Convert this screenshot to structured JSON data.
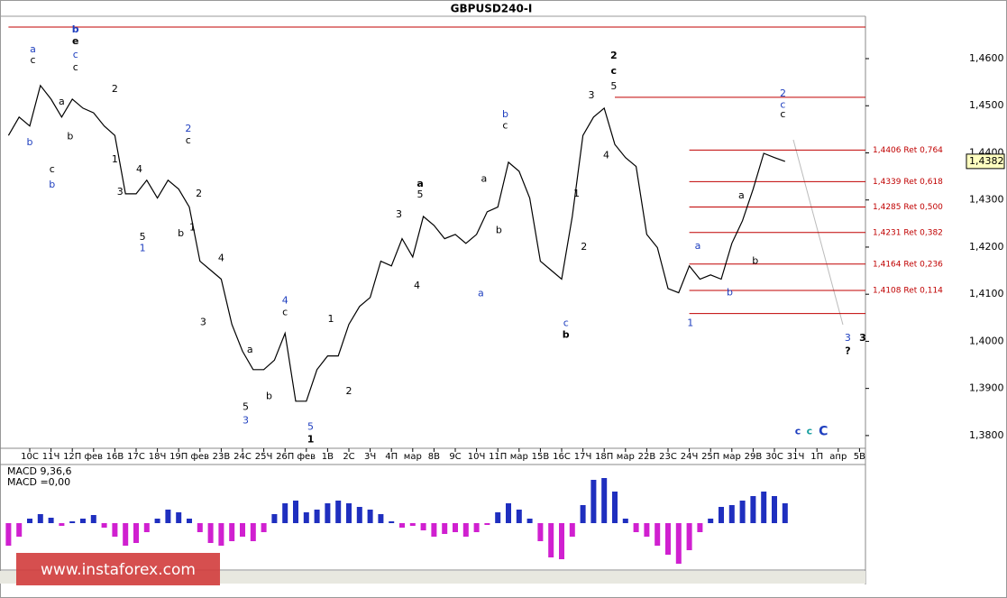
{
  "chart_data": [
    {
      "type": "line",
      "title": "GBPUSD240-I",
      "categories": [
        null,
        null,
        "10С",
        null,
        "11Ч",
        null,
        "12П",
        null,
        "фев",
        null,
        "16В",
        null,
        "17С",
        null,
        "18Ч",
        null,
        "19П",
        null,
        "фев",
        null,
        "23В",
        null,
        "24С",
        null,
        "25Ч",
        null,
        "26П",
        null,
        "фев",
        null,
        "1В",
        null,
        "2С",
        null,
        "3Ч",
        null,
        "4П",
        null,
        "мар",
        null,
        "8В",
        null,
        "9С",
        null,
        "10Ч",
        null,
        "11П",
        null,
        "мар",
        null,
        "15В",
        null,
        "16С",
        null,
        "17Ч",
        null,
        "18П",
        null,
        "мар",
        null,
        "22В",
        null,
        "23С",
        null,
        "24Ч",
        null,
        "25П",
        null,
        "мар",
        null,
        "29В",
        null,
        "30С",
        null,
        "31Ч",
        null,
        "1П",
        null,
        "апр",
        null,
        "5В"
      ],
      "series": [
        {
          "name": "GBPUSD240-I",
          "color": "#000000",
          "values": [
            1.4437,
            1.4476,
            1.4457,
            1.4543,
            1.4514,
            1.4476,
            1.4514,
            1.4495,
            1.4485,
            1.4457,
            1.4437,
            1.4313,
            1.4313,
            1.4342,
            1.4304,
            1.4342,
            1.4323,
            1.4285,
            1.417,
            1.4151,
            1.4132,
            1.4036,
            1.3979,
            1.394,
            1.394,
            1.396,
            1.4017,
            1.3873,
            1.3873,
            1.394,
            1.3969,
            1.3969,
            1.4036,
            1.4074,
            1.4093,
            1.417,
            1.416,
            1.4218,
            1.4179,
            1.4265,
            1.4246,
            1.4218,
            1.4227,
            1.4208,
            1.4227,
            1.4275,
            1.4285,
            1.438,
            1.4361,
            1.4304,
            1.417,
            1.4151,
            1.4132,
            1.4265,
            1.4437,
            1.4476,
            1.4495,
            1.4418,
            1.439,
            1.4371,
            1.4227,
            1.4199,
            1.4112,
            1.4103,
            1.416,
            1.4132,
            1.4141,
            1.4132,
            1.4208,
            1.4256,
            1.4323,
            1.4399,
            1.439,
            1.4382,
            null,
            null,
            null,
            null,
            null,
            null,
            null
          ]
        }
      ],
      "ylim": [
        1.3773,
        1.469
      ],
      "yticks": [
        {
          "value": 1.46,
          "label": "1,4600"
        },
        {
          "value": 1.45,
          "label": "1,4500"
        },
        {
          "value": 1.44,
          "label": "1,4400"
        },
        {
          "value": 1.43,
          "label": "1,4300"
        },
        {
          "value": 1.42,
          "label": "1,4200"
        },
        {
          "value": 1.41,
          "label": "1,4100"
        },
        {
          "value": 1.4,
          "label": "1,4000"
        },
        {
          "value": 1.39,
          "label": "1,3900"
        },
        {
          "value": 1.38,
          "label": "1,3800"
        }
      ],
      "last_price": {
        "value": 1.4382,
        "label": "1,4382"
      },
      "levels": [
        {
          "value": 1.4667,
          "from": 0,
          "color": "#c00000"
        },
        {
          "value": 1.4518,
          "from": 57,
          "color": "#c00000"
        },
        {
          "value": 1.4406,
          "from": 64,
          "color": "#c00000",
          "label": "1,4406 Ret 0,764"
        },
        {
          "value": 1.4339,
          "from": 64,
          "color": "#c00000",
          "label": "1,4339 Ret 0,618"
        },
        {
          "value": 1.4285,
          "from": 64,
          "color": "#c00000",
          "label": "1,4285 Ret 0,500"
        },
        {
          "value": 1.4231,
          "from": 64,
          "color": "#c00000",
          "label": "1,4231 Ret 0,382"
        },
        {
          "value": 1.4164,
          "from": 64,
          "color": "#c00000",
          "label": "1,4164 Ret 0,236"
        },
        {
          "value": 1.4108,
          "from": 64,
          "color": "#c00000",
          "label": "1,4108 Ret 0,114"
        },
        {
          "value": 1.4059,
          "from": 64,
          "color": "#c00000"
        }
      ],
      "annotations": [
        {
          "text": "a",
          "x": 2.3,
          "y": 1.4619,
          "color": "#1f3fbf"
        },
        {
          "text": "c",
          "x": 2.3,
          "y": 1.4596,
          "color": "#000000"
        },
        {
          "text": "b",
          "x": 2.0,
          "y": 1.4422,
          "color": "#1f3fbf"
        },
        {
          "text": "c",
          "x": 4.1,
          "y": 1.4365,
          "color": "#000000"
        },
        {
          "text": "b",
          "x": 4.1,
          "y": 1.4332,
          "color": "#1f3fbf"
        },
        {
          "text": "b",
          "x": 6.3,
          "y": 1.4661,
          "color": "#1f3fbf",
          "bold": true
        },
        {
          "text": "e",
          "x": 6.3,
          "y": 1.4636,
          "color": "#000000",
          "bold": true
        },
        {
          "text": "c",
          "x": 6.3,
          "y": 1.4608,
          "color": "#1f3fbf"
        },
        {
          "text": "c",
          "x": 6.3,
          "y": 1.4581,
          "color": "#000000"
        },
        {
          "text": "a",
          "x": 5.0,
          "y": 1.4508,
          "color": "#000000"
        },
        {
          "text": "b",
          "x": 5.8,
          "y": 1.4434,
          "color": "#000000"
        },
        {
          "text": "2",
          "x": 10.0,
          "y": 1.4535,
          "color": "#000000"
        },
        {
          "text": "1",
          "x": 10.0,
          "y": 1.4386,
          "color": "#000000"
        },
        {
          "text": "3",
          "x": 10.5,
          "y": 1.4317,
          "color": "#000000"
        },
        {
          "text": "4",
          "x": 12.3,
          "y": 1.4365,
          "color": "#000000"
        },
        {
          "text": "5",
          "x": 12.6,
          "y": 1.4221,
          "color": "#000000"
        },
        {
          "text": "1",
          "x": 12.6,
          "y": 1.4197,
          "color": "#1f3fbf"
        },
        {
          "text": "b",
          "x": 16.2,
          "y": 1.4229,
          "color": "#000000"
        },
        {
          "text": "1",
          "x": 17.3,
          "y": 1.4241,
          "color": "#000000"
        },
        {
          "text": "2",
          "x": 16.9,
          "y": 1.4451,
          "color": "#1f3fbf"
        },
        {
          "text": "c",
          "x": 16.9,
          "y": 1.4426,
          "color": "#000000"
        },
        {
          "text": "2",
          "x": 17.9,
          "y": 1.4313,
          "color": "#000000"
        },
        {
          "text": "4",
          "x": 20.0,
          "y": 1.4176,
          "color": "#000000"
        },
        {
          "text": "3",
          "x": 18.3,
          "y": 1.404,
          "color": "#000000"
        },
        {
          "text": "a",
          "x": 22.7,
          "y": 1.3982,
          "color": "#000000"
        },
        {
          "text": "b",
          "x": 24.5,
          "y": 1.3883,
          "color": "#000000"
        },
        {
          "text": "5",
          "x": 22.3,
          "y": 1.386,
          "color": "#000000"
        },
        {
          "text": "3",
          "x": 22.3,
          "y": 1.3831,
          "color": "#1f3fbf"
        },
        {
          "text": "4",
          "x": 26.0,
          "y": 1.4086,
          "color": "#1f3fbf"
        },
        {
          "text": "c",
          "x": 26.0,
          "y": 1.4061,
          "color": "#000000"
        },
        {
          "text": "5",
          "x": 28.4,
          "y": 1.3818,
          "color": "#1f3fbf"
        },
        {
          "text": "1",
          "x": 28.4,
          "y": 1.3791,
          "color": "#000000",
          "bold": true
        },
        {
          "text": "1",
          "x": 30.3,
          "y": 1.4047,
          "color": "#000000"
        },
        {
          "text": "2",
          "x": 32.0,
          "y": 1.3894,
          "color": "#000000"
        },
        {
          "text": "3",
          "x": 36.7,
          "y": 1.4269,
          "color": "#000000"
        },
        {
          "text": "4",
          "x": 38.4,
          "y": 1.4118,
          "color": "#000000"
        },
        {
          "text": "a",
          "x": 38.7,
          "y": 1.4334,
          "color": "#000000",
          "bold": true
        },
        {
          "text": "5",
          "x": 38.7,
          "y": 1.4311,
          "color": "#000000"
        },
        {
          "text": "a",
          "x": 44.4,
          "y": 1.4101,
          "color": "#1f3fbf"
        },
        {
          "text": "a",
          "x": 44.7,
          "y": 1.4344,
          "color": "#000000"
        },
        {
          "text": "b",
          "x": 46.7,
          "y": 1.4481,
          "color": "#1f3fbf"
        },
        {
          "text": "c",
          "x": 46.7,
          "y": 1.4457,
          "color": "#000000"
        },
        {
          "text": "b",
          "x": 46.1,
          "y": 1.4235,
          "color": "#000000"
        },
        {
          "text": "1",
          "x": 53.4,
          "y": 1.4313,
          "color": "#000000"
        },
        {
          "text": "2",
          "x": 54.1,
          "y": 1.42,
          "color": "#000000"
        },
        {
          "text": "c",
          "x": 52.4,
          "y": 1.4038,
          "color": "#1f3fbf"
        },
        {
          "text": "b",
          "x": 52.4,
          "y": 1.4013,
          "color": "#000000",
          "bold": true
        },
        {
          "text": "3",
          "x": 54.8,
          "y": 1.4522,
          "color": "#000000"
        },
        {
          "text": "4",
          "x": 56.2,
          "y": 1.4394,
          "color": "#000000"
        },
        {
          "text": "2",
          "x": 56.9,
          "y": 1.4606,
          "color": "#000000",
          "bold": true
        },
        {
          "text": "c",
          "x": 56.9,
          "y": 1.4573,
          "color": "#000000",
          "bold": true
        },
        {
          "text": "5",
          "x": 56.9,
          "y": 1.4541,
          "color": "#000000"
        },
        {
          "text": "1",
          "x": 64.1,
          "y": 1.4038,
          "color": "#1f3fbf"
        },
        {
          "text": "a",
          "x": 64.8,
          "y": 1.4202,
          "color": "#1f3fbf"
        },
        {
          "text": "b",
          "x": 67.8,
          "y": 1.4103,
          "color": "#1f3fbf"
        },
        {
          "text": "a",
          "x": 68.9,
          "y": 1.4309,
          "color": "#000000"
        },
        {
          "text": "b",
          "x": 70.2,
          "y": 1.417,
          "color": "#000000"
        },
        {
          "text": "2",
          "x": 72.8,
          "y": 1.4525,
          "color": "#1f3fbf"
        },
        {
          "text": "c",
          "x": 72.8,
          "y": 1.4501,
          "color": "#1f3fbf"
        },
        {
          "text": "c",
          "x": 72.8,
          "y": 1.4481,
          "color": "#000000"
        },
        {
          "text": "3",
          "x": 78.9,
          "y": 1.4007,
          "color": "#1f3fbf"
        },
        {
          "text": "3",
          "x": 80.3,
          "y": 1.4007,
          "color": "#000000",
          "bold": true
        },
        {
          "text": "?",
          "x": 78.9,
          "y": 1.3979,
          "color": "#000000",
          "bold": true
        },
        {
          "text": "c",
          "x": 74.2,
          "y": 1.3808,
          "color": "#1f3fbf",
          "bold": true
        },
        {
          "text": "c",
          "x": 75.3,
          "y": 1.3808,
          "color": "#1aa0a0",
          "bold": true
        },
        {
          "text": "C",
          "x": 76.6,
          "y": 1.3808,
          "color": "#1f3fbf",
          "bold": true,
          "big": true
        }
      ]
    },
    {
      "type": "histogram-indicator",
      "title": "MACD 9,36,6",
      "subtitle": "MACD =0,00",
      "positive_color": "#1f2fbf",
      "negative_color": "#d020d0",
      "ylim": [
        -52,
        65
      ],
      "values": [
        -25,
        -15,
        5,
        10,
        6,
        -3,
        2,
        5,
        9,
        -5,
        -15,
        -25,
        -22,
        -10,
        5,
        15,
        12,
        5,
        -10,
        -22,
        -25,
        -20,
        -15,
        -20,
        -10,
        10,
        22,
        25,
        12,
        15,
        22,
        25,
        22,
        18,
        15,
        10,
        2,
        -5,
        -3,
        -8,
        -15,
        -12,
        -10,
        -15,
        -10,
        -2,
        12,
        22,
        15,
        5,
        -20,
        -38,
        -40,
        -15,
        20,
        48,
        50,
        35,
        5,
        -10,
        -15,
        -25,
        -35,
        -45,
        -30,
        -10,
        5,
        18,
        20,
        25,
        30,
        35,
        30,
        22,
        null,
        null,
        null,
        null,
        null,
        null,
        null
      ]
    }
  ],
  "watermark": "www.instaforex.com"
}
